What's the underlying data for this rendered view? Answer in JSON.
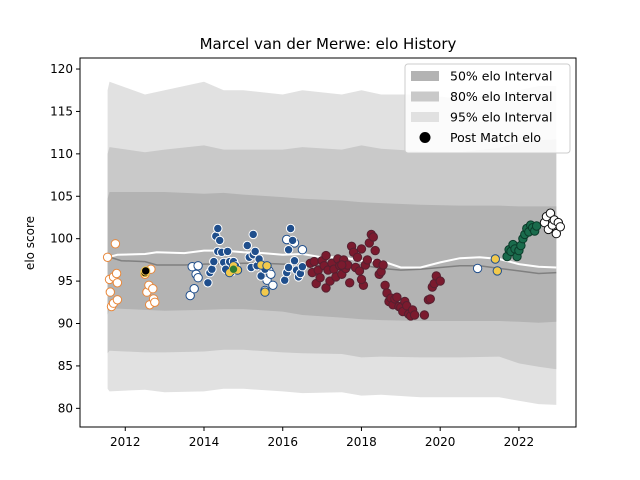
{
  "chart_data": {
    "type": "scatter",
    "title": "Marcel van der Merwe: elo History",
    "xlabel": "",
    "ylabel": "elo score",
    "xlim": [
      2010.85,
      2023.45
    ],
    "ylim": [
      77.8,
      121.3
    ],
    "grid": false,
    "legend_position": "top-right",
    "xticks": [
      2012,
      2014,
      2016,
      2018,
      2020,
      2022
    ],
    "yticks": [
      80,
      85,
      90,
      95,
      100,
      105,
      110,
      115,
      120
    ],
    "bands": [
      {
        "name": "95% elo Interval",
        "color": "#e1e1e1",
        "x": [
          2011.55,
          2011.6,
          2012.5,
          2013.0,
          2014.0,
          2014.5,
          2015.0,
          2016.0,
          2016.5,
          2017.5,
          2018.0,
          2018.5,
          2019.5,
          2020.5,
          2021.5,
          2022.0,
          2022.5,
          2022.95
        ],
        "upper": [
          117.5,
          118.5,
          117.0,
          117.5,
          118.5,
          117.5,
          117.5,
          117.0,
          117.5,
          117.0,
          117.5,
          117.0,
          117.0,
          116.5,
          117.0,
          117.5,
          118.0,
          118.0
        ],
        "lower": [
          82.3,
          82.0,
          82.2,
          81.9,
          82.0,
          82.3,
          82.3,
          82.0,
          81.8,
          81.9,
          81.5,
          81.6,
          81.3,
          81.3,
          81.3,
          80.9,
          80.5,
          80.4
        ]
      },
      {
        "name": "80% elo Interval",
        "color": "#c9c9c9",
        "x": [
          2011.55,
          2011.6,
          2012.5,
          2013.0,
          2014.0,
          2014.5,
          2015.0,
          2016.0,
          2016.5,
          2017.5,
          2018.0,
          2018.5,
          2019.5,
          2020.5,
          2021.5,
          2022.0,
          2022.5,
          2022.95
        ],
        "upper": [
          110.0,
          110.8,
          110.2,
          110.5,
          111.0,
          110.5,
          110.5,
          110.5,
          110.8,
          110.5,
          111.0,
          110.6,
          110.3,
          110.2,
          110.7,
          111.3,
          111.6,
          111.7
        ],
        "lower": [
          86.5,
          86.8,
          86.6,
          86.6,
          86.7,
          86.9,
          86.9,
          86.6,
          86.5,
          86.4,
          86.0,
          86.1,
          86.0,
          86.0,
          86.1,
          85.3,
          84.9,
          84.6
        ]
      },
      {
        "name": "50% elo Interval",
        "color": "#b3b3b3",
        "x": [
          2011.55,
          2011.6,
          2012.5,
          2013.0,
          2014.0,
          2014.5,
          2015.0,
          2016.0,
          2016.5,
          2017.5,
          2018.0,
          2018.5,
          2019.5,
          2020.5,
          2021.5,
          2022.0,
          2022.5,
          2022.95
        ],
        "upper": [
          104.7,
          105.5,
          105.5,
          105.5,
          105.3,
          105.4,
          105.2,
          104.9,
          104.7,
          104.5,
          104.3,
          104.2,
          104.0,
          103.9,
          103.9,
          103.8,
          103.8,
          103.8
        ],
        "lower": [
          91.0,
          91.8,
          91.6,
          91.5,
          91.6,
          91.7,
          91.7,
          91.4,
          91.0,
          90.7,
          90.5,
          90.4,
          90.3,
          90.3,
          90.3,
          90.2,
          90.1,
          90.2
        ]
      }
    ],
    "median_line": {
      "color": "#808080",
      "x": [
        2011.55,
        2011.9,
        2012.5,
        2012.8,
        2013.5,
        2014.0,
        2015.0,
        2015.5,
        2016.0,
        2016.5,
        2017.0,
        2017.5,
        2018.0,
        2018.5,
        2019.0,
        2019.5,
        2020.0,
        2020.5,
        2021.0,
        2021.5,
        2022.0,
        2022.5,
        2022.95
      ],
      "y": [
        97.9,
        97.4,
        97.3,
        96.9,
        96.9,
        97.0,
        97.1,
        97.1,
        97.0,
        97.0,
        96.8,
        96.9,
        96.9,
        96.5,
        96.3,
        96.4,
        96.6,
        96.8,
        96.8,
        96.5,
        96.2,
        95.9,
        96.0
      ]
    },
    "elo_line": {
      "color": "#ffffff",
      "x": [
        2011.55,
        2011.8,
        2012.5,
        2012.8,
        2013.5,
        2014.0,
        2014.5,
        2015.0,
        2015.5,
        2016.0,
        2016.5,
        2017.0,
        2017.5,
        2018.0,
        2018.5,
        2019.0,
        2019.5,
        2020.0,
        2020.5,
        2021.0,
        2021.5,
        2022.0,
        2022.5,
        2022.95
      ],
      "y": [
        97.8,
        98.1,
        98.2,
        98.4,
        98.3,
        98.6,
        98.6,
        98.4,
        98.3,
        98.1,
        98.2,
        97.8,
        97.8,
        97.4,
        97.4,
        96.6,
        96.6,
        97.2,
        97.7,
        97.8,
        97.6,
        97.0,
        96.7,
        96.6
      ]
    },
    "series": [
      {
        "fill": "#ffffff",
        "edge": "#e8873a",
        "points": [
          [
            2011.55,
            97.8
          ],
          [
            2011.6,
            95.2
          ],
          [
            2011.62,
            93.7
          ],
          [
            2011.65,
            92.0
          ],
          [
            2011.7,
            92.4
          ],
          [
            2011.7,
            95.5
          ],
          [
            2011.75,
            99.4
          ],
          [
            2011.78,
            95.9
          ],
          [
            2011.8,
            94.8
          ],
          [
            2011.8,
            92.8
          ],
          [
            2012.5,
            95.8
          ],
          [
            2012.55,
            93.7
          ],
          [
            2012.6,
            94.5
          ],
          [
            2012.62,
            92.2
          ],
          [
            2012.65,
            96.4
          ],
          [
            2012.7,
            94.1
          ],
          [
            2012.72,
            92.9
          ],
          [
            2012.75,
            92.5
          ]
        ]
      },
      {
        "fill": "#000000",
        "edge": "#f2c94c",
        "points": [
          [
            2012.5,
            96.0
          ],
          [
            2012.52,
            96.2
          ]
        ]
      },
      {
        "fill": "#ffffff",
        "edge": "#1f4e8c",
        "points": [
          [
            2013.65,
            93.3
          ],
          [
            2013.7,
            96.7
          ],
          [
            2013.75,
            94.1
          ],
          [
            2013.8,
            95.8
          ],
          [
            2013.85,
            95.4
          ],
          [
            2013.85,
            96.8
          ],
          [
            2015.55,
            93.9
          ],
          [
            2015.6,
            95.1
          ],
          [
            2015.65,
            96.2
          ],
          [
            2015.7,
            95.8
          ],
          [
            2015.75,
            94.5
          ],
          [
            2016.1,
            99.9
          ],
          [
            2016.3,
            99.5
          ],
          [
            2016.5,
            98.7
          ],
          [
            2020.95,
            96.5
          ]
        ]
      },
      {
        "fill": "#1f4e8c",
        "edge": "#ffffff",
        "points": [
          [
            2014.1,
            94.8
          ],
          [
            2014.15,
            96.0
          ],
          [
            2014.2,
            96.4
          ],
          [
            2014.25,
            97.3
          ],
          [
            2014.3,
            100.3
          ],
          [
            2014.35,
            98.5
          ],
          [
            2014.35,
            101.2
          ],
          [
            2014.4,
            99.8
          ],
          [
            2014.45,
            98.4
          ],
          [
            2014.5,
            97.2
          ],
          [
            2014.55,
            96.4
          ],
          [
            2014.6,
            98.5
          ],
          [
            2014.65,
            97.3
          ],
          [
            2014.7,
            96.1
          ],
          [
            2014.75,
            97.3
          ],
          [
            2014.8,
            96.8
          ],
          [
            2015.1,
            99.2
          ],
          [
            2015.15,
            97.8
          ],
          [
            2015.2,
            96.6
          ],
          [
            2015.25,
            98.1
          ],
          [
            2015.25,
            100.5
          ],
          [
            2015.3,
            98.5
          ],
          [
            2015.35,
            96.8
          ],
          [
            2015.4,
            97.6
          ],
          [
            2015.45,
            95.6
          ],
          [
            2015.5,
            96.7
          ],
          [
            2015.55,
            96.4
          ],
          [
            2016.05,
            95.1
          ],
          [
            2016.1,
            96.0
          ],
          [
            2016.15,
            96.6
          ],
          [
            2016.15,
            98.7
          ],
          [
            2016.2,
            101.2
          ],
          [
            2016.25,
            99.8
          ],
          [
            2016.3,
            97.4
          ],
          [
            2016.35,
            96.3
          ],
          [
            2016.4,
            95.5
          ],
          [
            2016.45,
            95.9
          ],
          [
            2016.5,
            96.7
          ]
        ]
      },
      {
        "fill": "#f2c94c",
        "edge": "#1f4e8c",
        "points": [
          [
            2014.65,
            96.0
          ],
          [
            2014.75,
            96.8
          ],
          [
            2014.85,
            96.3
          ],
          [
            2015.45,
            96.9
          ],
          [
            2015.55,
            93.7
          ],
          [
            2015.6,
            96.8
          ],
          [
            2021.4,
            97.6
          ],
          [
            2021.45,
            96.2
          ]
        ]
      },
      {
        "fill": "#2e7d32",
        "edge": "#f2c94c",
        "points": [
          [
            2014.75,
            96.4
          ]
        ]
      },
      {
        "fill": "#7b1a2e",
        "edge": "#552030",
        "points": [
          [
            2016.7,
            97.1
          ],
          [
            2016.75,
            96.0
          ],
          [
            2016.8,
            97.3
          ],
          [
            2016.85,
            94.7
          ],
          [
            2016.9,
            96.3
          ],
          [
            2016.95,
            95.4
          ],
          [
            2017.0,
            97.4
          ],
          [
            2017.05,
            96.8
          ],
          [
            2017.1,
            98.0
          ],
          [
            2017.1,
            94.2
          ],
          [
            2017.15,
            96.3
          ],
          [
            2017.2,
            95.0
          ],
          [
            2017.25,
            97.1
          ],
          [
            2017.3,
            96.4
          ],
          [
            2017.35,
            95.5
          ],
          [
            2017.4,
            97.6
          ],
          [
            2017.45,
            96.8
          ],
          [
            2017.5,
            95.8
          ],
          [
            2017.55,
            97.5
          ],
          [
            2017.6,
            96.5
          ],
          [
            2017.65,
            96.9
          ],
          [
            2017.75,
            99.1
          ],
          [
            2017.8,
            98.4
          ],
          [
            2017.85,
            96.6
          ],
          [
            2017.9,
            97.8
          ],
          [
            2017.95,
            96.2
          ],
          [
            2018.0,
            98.8
          ],
          [
            2018.05,
            94.5
          ],
          [
            2018.1,
            96.9
          ],
          [
            2018.15,
            97.5
          ],
          [
            2018.2,
            99.5
          ],
          [
            2018.25,
            100.5
          ],
          [
            2018.3,
            100.2
          ],
          [
            2018.35,
            98.6
          ],
          [
            2018.4,
            97.1
          ],
          [
            2018.45,
            95.8
          ],
          [
            2018.5,
            96.1
          ],
          [
            2018.55,
            96.9
          ],
          [
            2018.6,
            94.5
          ],
          [
            2018.65,
            93.6
          ],
          [
            2018.7,
            92.6
          ],
          [
            2018.75,
            93.0
          ],
          [
            2018.8,
            92.2
          ],
          [
            2018.85,
            92.9
          ],
          [
            2018.9,
            93.1
          ],
          [
            2018.95,
            92.0
          ],
          [
            2019.0,
            91.9
          ],
          [
            2019.05,
            91.4
          ],
          [
            2019.1,
            92.6
          ],
          [
            2019.15,
            92.1
          ],
          [
            2019.2,
            91.1
          ],
          [
            2019.25,
            90.9
          ],
          [
            2019.3,
            91.6
          ],
          [
            2019.35,
            91.0
          ],
          [
            2019.6,
            91.0
          ],
          [
            2019.7,
            92.8
          ],
          [
            2019.75,
            92.9
          ],
          [
            2019.8,
            94.3
          ],
          [
            2019.85,
            94.7
          ],
          [
            2019.9,
            95.6
          ],
          [
            2020.0,
            95.0
          ],
          [
            2018.0,
            95.2
          ],
          [
            2017.7,
            94.8
          ],
          [
            2017.5,
            96.9
          ]
        ]
      },
      {
        "fill": "#1a6b4c",
        "edge": "#0b3b2a",
        "points": [
          [
            2021.7,
            97.9
          ],
          [
            2021.75,
            98.7
          ],
          [
            2021.8,
            98.5
          ],
          [
            2021.85,
            99.3
          ],
          [
            2021.9,
            98.8
          ],
          [
            2021.95,
            97.9
          ],
          [
            2022.0,
            98.6
          ],
          [
            2022.05,
            99.2
          ],
          [
            2022.1,
            100.0
          ],
          [
            2022.15,
            100.5
          ],
          [
            2022.2,
            101.2
          ],
          [
            2022.25,
            100.8
          ],
          [
            2022.3,
            101.6
          ],
          [
            2022.35,
            101.3
          ],
          [
            2022.4,
            100.9
          ],
          [
            2022.45,
            101.5
          ]
        ]
      },
      {
        "fill": "#ffffff",
        "edge": "#111111",
        "points": [
          [
            2022.65,
            101.9
          ],
          [
            2022.7,
            102.6
          ],
          [
            2022.75,
            101.1
          ],
          [
            2022.8,
            103.0
          ],
          [
            2022.85,
            101.6
          ],
          [
            2022.9,
            102.2
          ],
          [
            2022.95,
            100.6
          ],
          [
            2023.0,
            101.9
          ],
          [
            2023.05,
            101.4
          ]
        ]
      }
    ],
    "legend": [
      {
        "label": "50% elo Interval",
        "kind": "patch",
        "color": "#b3b3b3"
      },
      {
        "label": "80% elo Interval",
        "kind": "patch",
        "color": "#c9c9c9"
      },
      {
        "label": "95% elo Interval",
        "kind": "patch",
        "color": "#e1e1e1"
      },
      {
        "label": "Post Match elo",
        "kind": "marker",
        "color": "#000000"
      }
    ]
  }
}
